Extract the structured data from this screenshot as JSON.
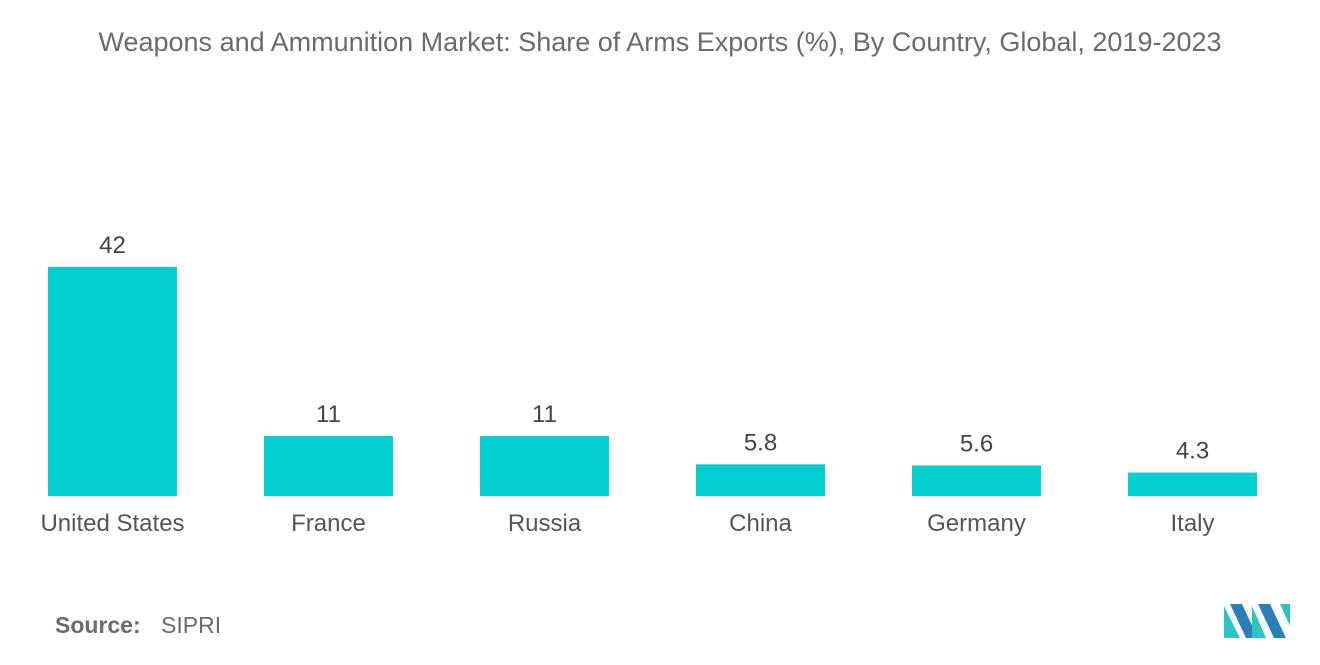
{
  "chart_data": {
    "type": "bar",
    "title": "Weapons and Ammunition Market: Share of Arms Exports (%), By Country, Global, 2019-2023",
    "categories": [
      "United States",
      "France",
      "Russia",
      "China",
      "Germany",
      "Italy"
    ],
    "values": [
      42,
      11,
      11,
      5.8,
      5.6,
      4.3
    ],
    "value_labels": [
      "42",
      "11",
      "11",
      "5.8",
      "5.6",
      "4.3"
    ],
    "xlabel": "",
    "ylabel": "",
    "ylim": [
      0,
      42
    ],
    "grid": false,
    "legend": "none",
    "bar_color": "#00CED1"
  },
  "source": {
    "label": "Source:",
    "value": "SIPRI"
  },
  "logo": {
    "icon": "mordor-intelligence-logo-icon",
    "colors": [
      "#2B7FB8",
      "#2CC4C4"
    ]
  }
}
